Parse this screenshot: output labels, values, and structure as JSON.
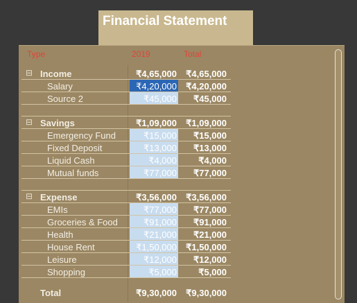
{
  "title": "Financial Statement",
  "headers": {
    "type": "Type",
    "year": "2019",
    "total": "Total"
  },
  "income": {
    "label": "Income",
    "expander": "⊟",
    "year": "₹4,65,000",
    "total": "₹4,65,000",
    "items": [
      {
        "label": "Salary",
        "year": "₹4,20,000",
        "total": "₹4,20,000"
      },
      {
        "label": "Source 2",
        "year": "₹45,000",
        "total": "₹45,000"
      }
    ]
  },
  "savings": {
    "label": "Savings",
    "expander": "⊟",
    "year": "₹1,09,000",
    "total": "₹1,09,000",
    "items": [
      {
        "label": "Emergency Fund",
        "year": "₹15,000",
        "total": "₹15,000"
      },
      {
        "label": "Fixed Deposit",
        "year": "₹13,000",
        "total": "₹13,000"
      },
      {
        "label": "Liquid Cash",
        "year": "₹4,000",
        "total": "₹4,000"
      },
      {
        "label": "Mutual funds",
        "year": "₹77,000",
        "total": "₹77,000"
      }
    ]
  },
  "expense": {
    "label": "Expense",
    "expander": "⊟",
    "year": "₹3,56,000",
    "total": "₹3,56,000",
    "items": [
      {
        "label": "EMIs",
        "year": "₹77,000",
        "total": "₹77,000"
      },
      {
        "label": "Groceries & Food",
        "year": "₹91,000",
        "total": "₹91,000"
      },
      {
        "label": "Health",
        "year": "₹21,000",
        "total": "₹21,000"
      },
      {
        "label": "House Rent",
        "year": "₹1,50,000",
        "total": "₹1,50,000"
      },
      {
        "label": "Leisure",
        "year": "₹12,000",
        "total": "₹12,000"
      },
      {
        "label": "Shopping",
        "year": "₹5,000",
        "total": "₹5,000"
      }
    ]
  },
  "grand_total": {
    "label": "Total",
    "year": "₹9,30,000",
    "total": "₹9,30,000"
  }
}
